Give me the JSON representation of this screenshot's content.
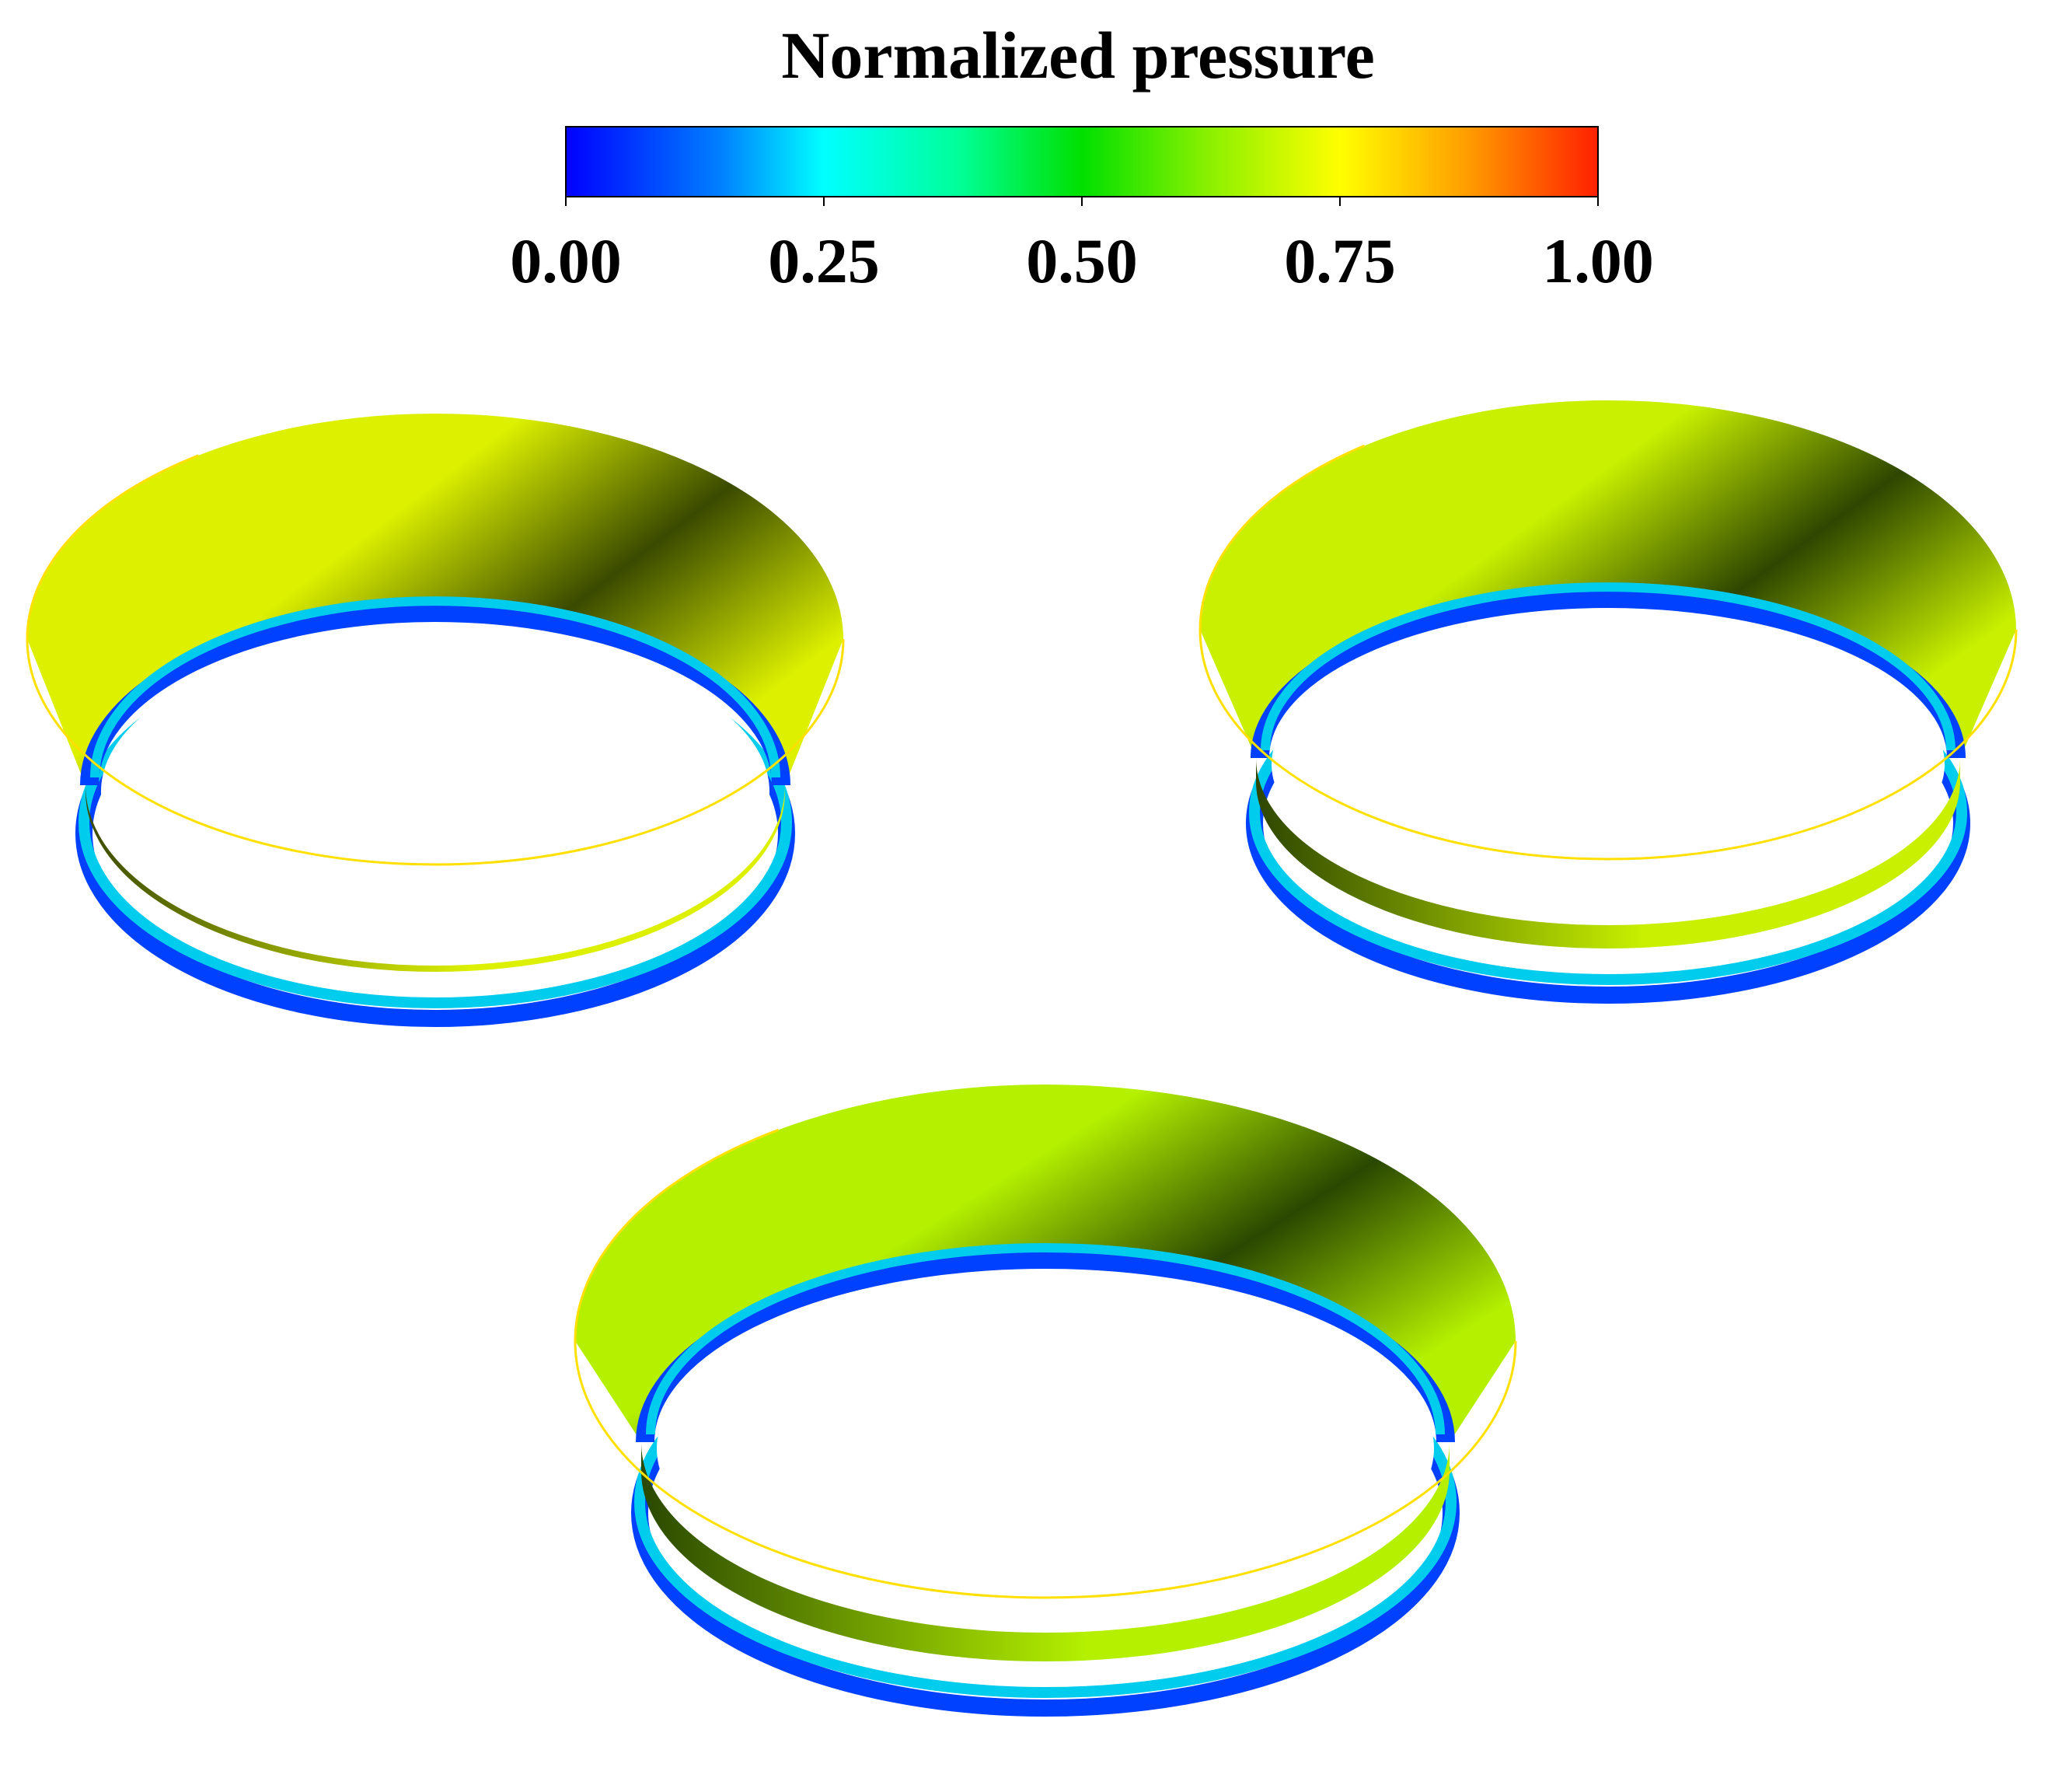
{
  "colorbar": {
    "title": "Normalized pressure",
    "range": [
      0,
      1
    ],
    "ticks": [
      "0.00",
      "0.25",
      "0.50",
      "0.75",
      "1.00"
    ],
    "tick_values": [
      0,
      0.25,
      0.5,
      0.75,
      1.0
    ],
    "colormap": [
      {
        "value": 0.0,
        "color": "#0000ff"
      },
      {
        "value": 0.15,
        "color": "#0080ff"
      },
      {
        "value": 0.25,
        "color": "#00ffff"
      },
      {
        "value": 0.38,
        "color": "#00ff99"
      },
      {
        "value": 0.5,
        "color": "#00e000"
      },
      {
        "value": 0.62,
        "color": "#88f000"
      },
      {
        "value": 0.75,
        "color": "#ffff00"
      },
      {
        "value": 0.87,
        "color": "#ffa000"
      },
      {
        "value": 1.0,
        "color": "#ff2000"
      }
    ]
  },
  "contour_plots": [
    {
      "id": "upper-left",
      "bowl_color": "#dcf000",
      "shadow_color": "#3a4a00",
      "band_color": "#00ccee",
      "ring_color": "#0040ff"
    },
    {
      "id": "upper-right",
      "bowl_color": "#c8f000",
      "shadow_color": "#2e4600",
      "band_color": "#00ccee",
      "ring_color": "#0040ff"
    },
    {
      "id": "bottom-center",
      "bowl_color": "#b4f000",
      "shadow_color": "#2a4800",
      "band_color": "#00ccee",
      "ring_color": "#0040ff"
    }
  ]
}
